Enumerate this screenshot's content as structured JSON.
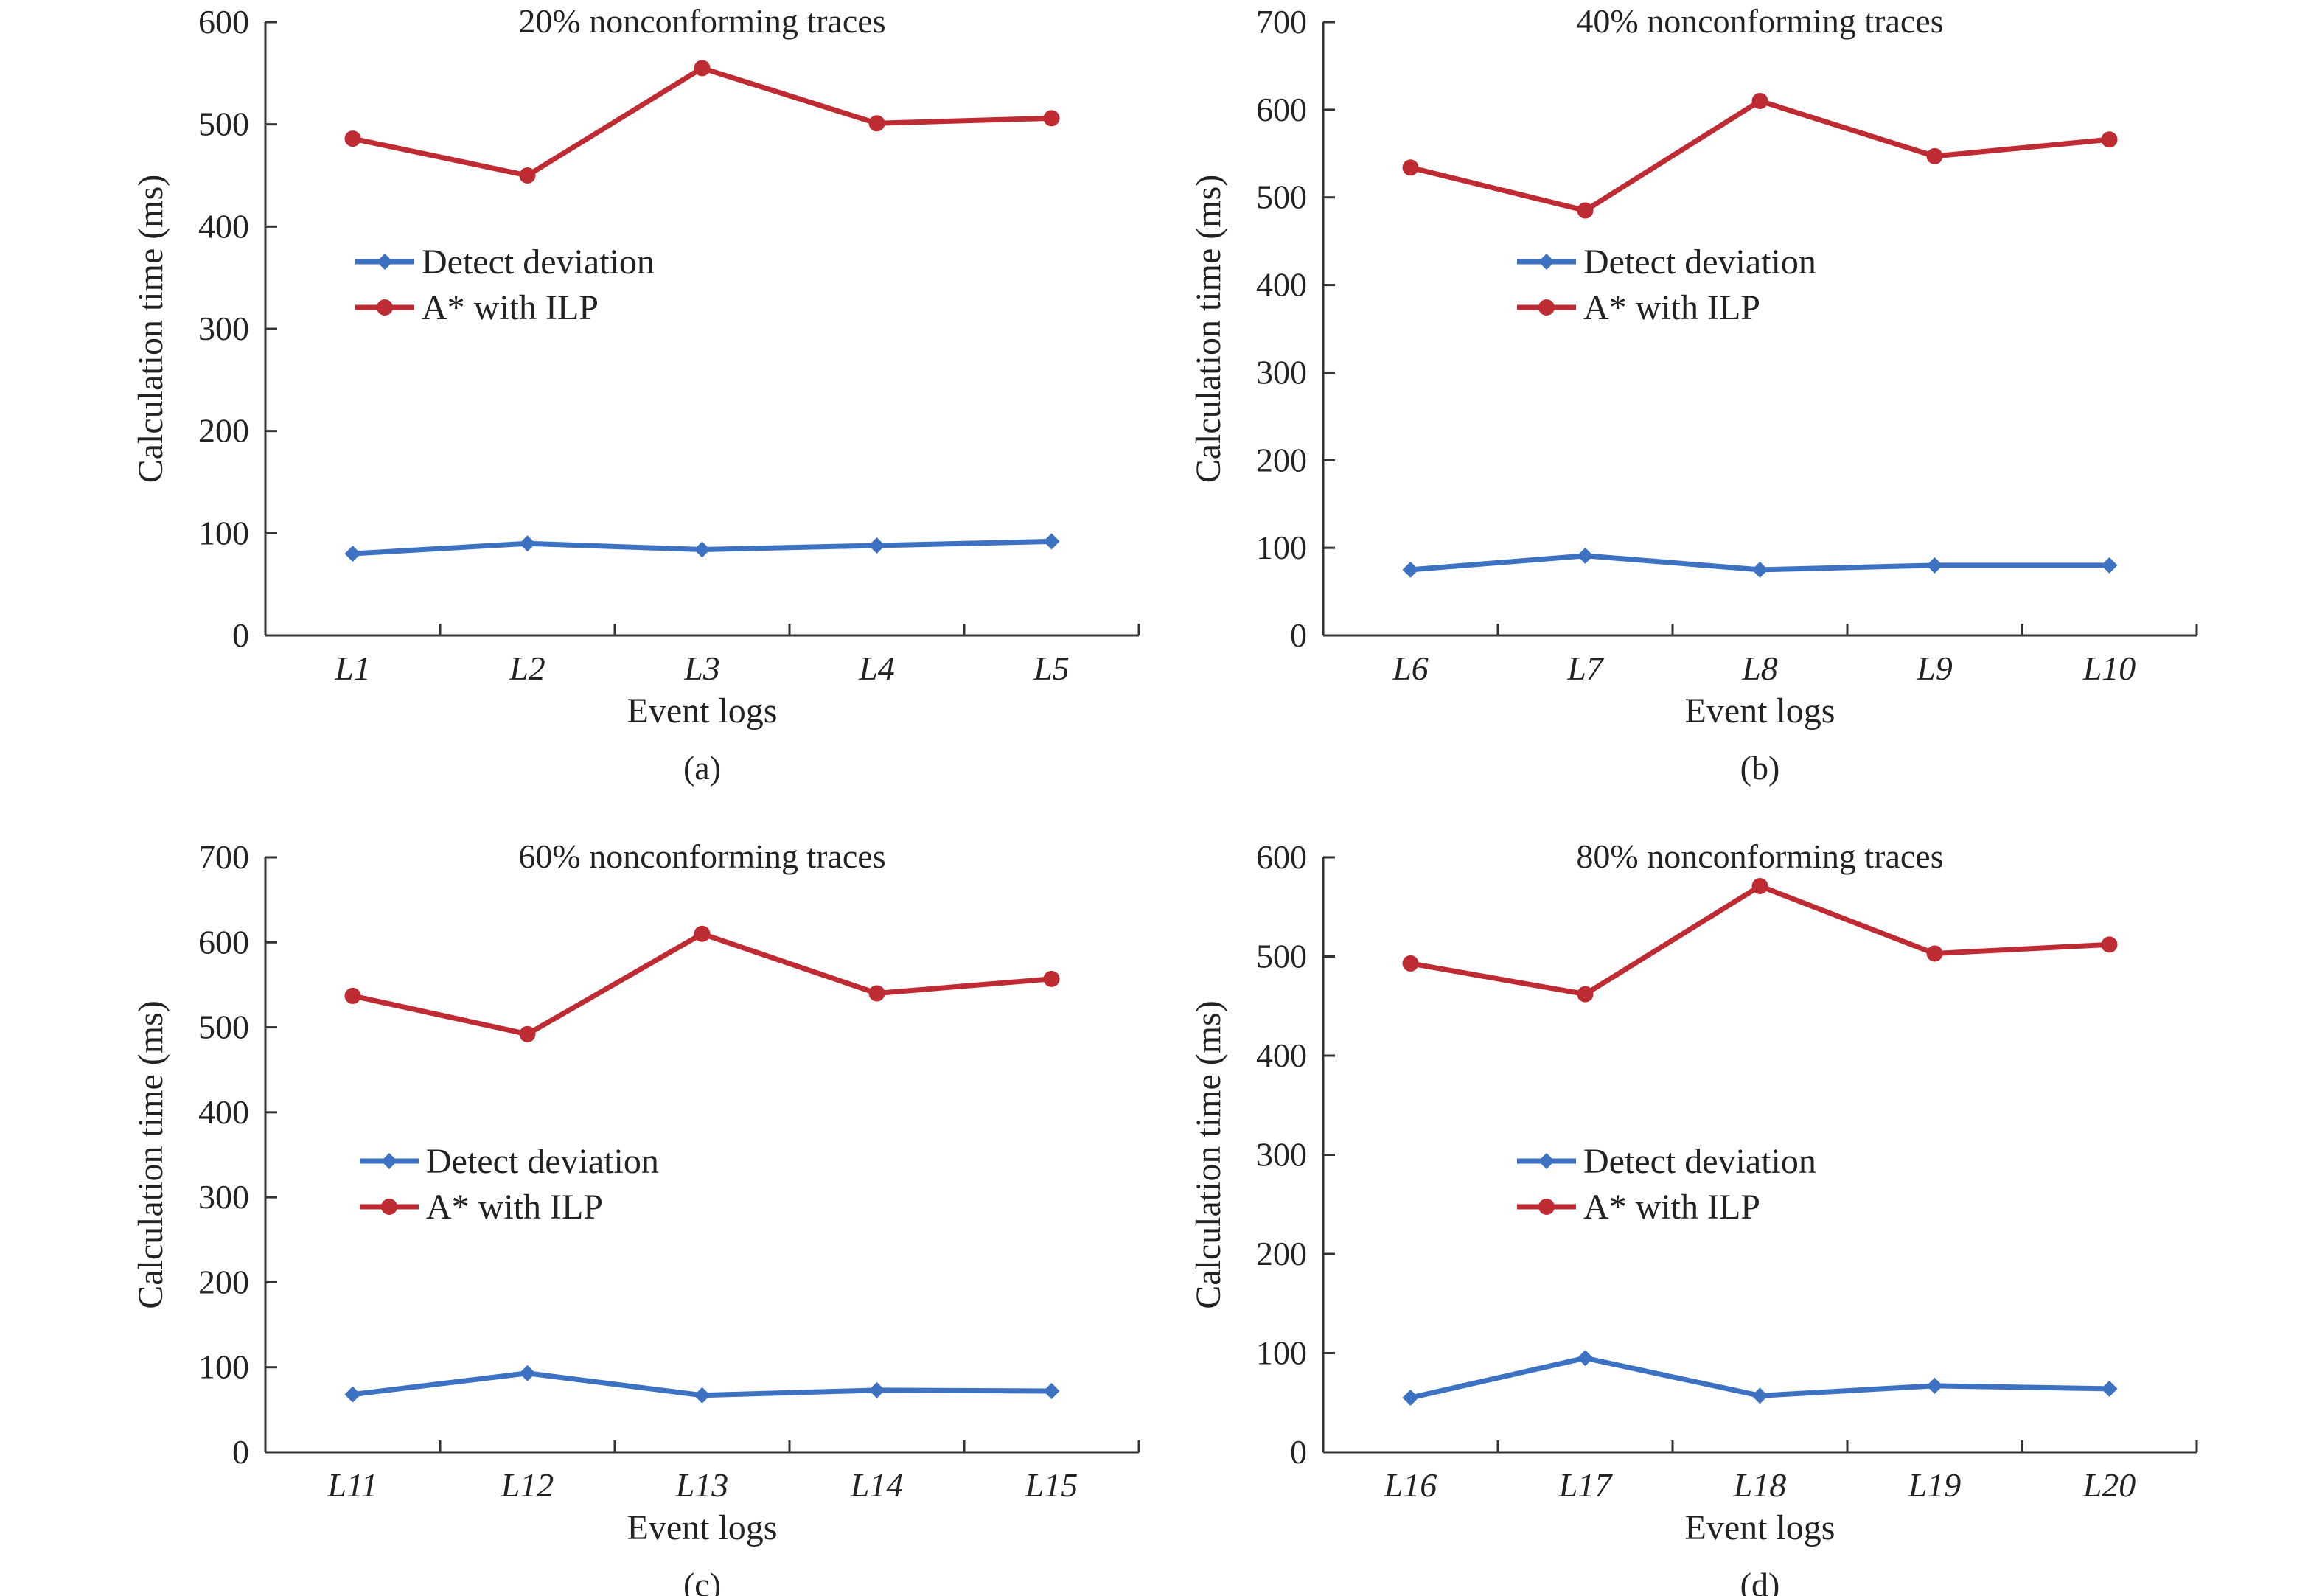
{
  "colors": {
    "detect": "#3d72c2",
    "astar": "#bf2b33",
    "axis": "#333333"
  },
  "chart_data": [
    {
      "type": "line",
      "title": "20% nonconforming traces",
      "xlabel": "Event logs",
      "ylabel": "Calculation time (ms)",
      "caption": "(a)",
      "categories": [
        "L1",
        "L2",
        "L3",
        "L4",
        "L5"
      ],
      "ylim": [
        0,
        600
      ],
      "yticks": [
        0,
        100,
        200,
        300,
        400,
        500,
        600
      ],
      "legend": "center-left",
      "series": [
        {
          "name": "Detect deviation",
          "marker": "diamond",
          "values": [
            80,
            90,
            84,
            88,
            92
          ]
        },
        {
          "name": "A* with ILP",
          "marker": "circle",
          "values": [
            486,
            450,
            555,
            501,
            506
          ]
        }
      ]
    },
    {
      "type": "line",
      "title": "40% nonconforming traces",
      "xlabel": "Event logs",
      "ylabel": "Calculation time (ms)",
      "caption": "(b)",
      "categories": [
        "L6",
        "L7",
        "L8",
        "L9",
        "L10"
      ],
      "ylim": [
        0,
        700
      ],
      "yticks": [
        0,
        100,
        200,
        300,
        400,
        500,
        600,
        700
      ],
      "legend": "center",
      "series": [
        {
          "name": "Detect deviation",
          "marker": "diamond",
          "values": [
            75,
            91,
            75,
            80,
            80
          ]
        },
        {
          "name": "A* with ILP",
          "marker": "circle",
          "values": [
            534,
            485,
            610,
            547,
            566
          ]
        }
      ]
    },
    {
      "type": "line",
      "title": "60% nonconforming traces",
      "xlabel": "Event logs",
      "ylabel": "Calculation time (ms)",
      "caption": "(c)",
      "categories": [
        "L11",
        "L12",
        "L13",
        "L14",
        "L15"
      ],
      "ylim": [
        0,
        700
      ],
      "yticks": [
        0,
        100,
        200,
        300,
        400,
        500,
        600,
        700
      ],
      "legend": "center-left",
      "series": [
        {
          "name": "Detect deviation",
          "marker": "diamond",
          "values": [
            68,
            93,
            67,
            73,
            72
          ]
        },
        {
          "name": "A* with ILP",
          "marker": "circle",
          "values": [
            537,
            492,
            610,
            540,
            557
          ]
        }
      ]
    },
    {
      "type": "line",
      "title": "80% nonconforming traces",
      "xlabel": "Event logs",
      "ylabel": "Calculation time (ms)",
      "caption": "(d)",
      "categories": [
        "L16",
        "L17",
        "L18",
        "L19",
        "L20"
      ],
      "ylim": [
        0,
        600
      ],
      "yticks": [
        0,
        100,
        200,
        300,
        400,
        500,
        600
      ],
      "legend": "center",
      "series": [
        {
          "name": "Detect deviation",
          "marker": "diamond",
          "values": [
            55,
            95,
            57,
            67,
            64
          ]
        },
        {
          "name": "A* with ILP",
          "marker": "circle",
          "values": [
            493,
            462,
            571,
            503,
            512
          ]
        }
      ]
    }
  ]
}
